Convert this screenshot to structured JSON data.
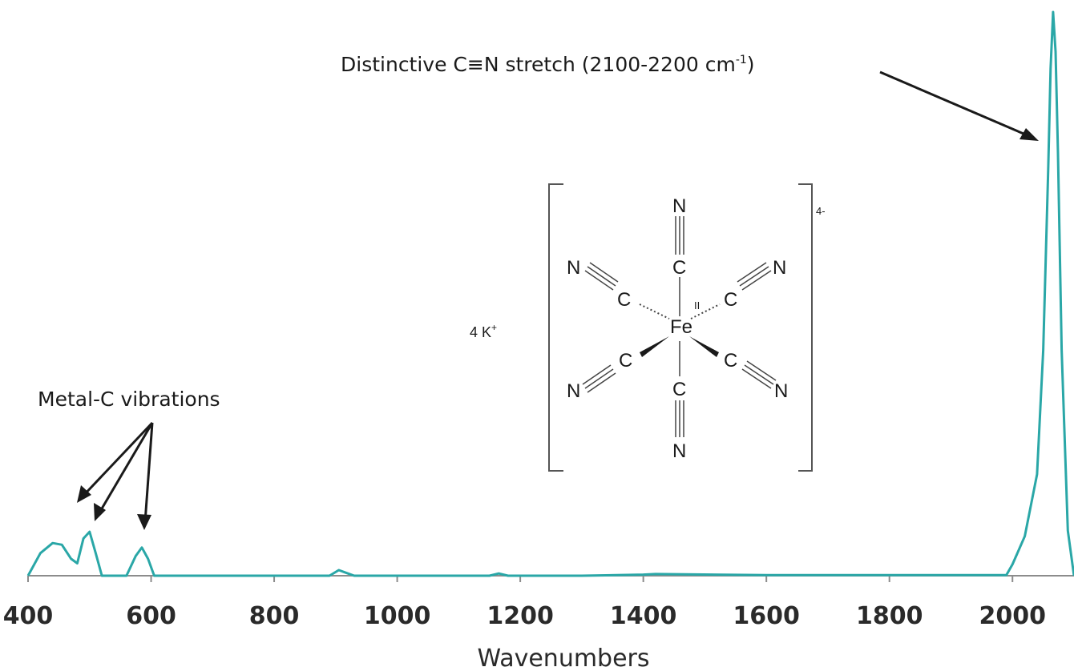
{
  "chart_data": {
    "type": "line",
    "xlabel": "Wavenumbers",
    "ylabel": "",
    "title": "",
    "xlim": [
      400,
      2100
    ],
    "ylim": [
      0,
      1
    ],
    "xticks": [
      400,
      600,
      800,
      1000,
      1200,
      1400,
      1600,
      1800,
      2000
    ],
    "xtick_labels": [
      "400",
      "600",
      "800",
      "1000",
      "1200",
      "1400",
      "1600",
      "1800",
      "2000"
    ],
    "series": [
      {
        "color": "#2aa7a7",
        "x": [
          400,
          420,
          440,
          455,
          470,
          480,
          490,
          500,
          510,
          520,
          540,
          560,
          575,
          585,
          595,
          605,
          620,
          700,
          800,
          890,
          905,
          915,
          930,
          1000,
          1150,
          1165,
          1180,
          1300,
          1400,
          1420,
          1600,
          1800,
          1990,
          2000,
          2020,
          2040,
          2050,
          2058,
          2062,
          2066,
          2070,
          2074,
          2080,
          2090,
          2100
        ],
        "y": [
          0.0,
          0.04,
          0.058,
          0.055,
          0.03,
          0.022,
          0.066,
          0.078,
          0.04,
          0.0,
          0.0,
          0.0,
          0.035,
          0.05,
          0.03,
          0.0,
          0.0,
          0.0,
          0.0,
          0.0,
          0.01,
          0.006,
          0.0,
          0.0,
          0.0,
          0.004,
          0.0,
          0.0,
          0.002,
          0.003,
          0.001,
          0.001,
          0.001,
          0.02,
          0.07,
          0.18,
          0.4,
          0.72,
          0.9,
          1.0,
          0.93,
          0.75,
          0.4,
          0.08,
          0.0
        ]
      }
    ],
    "annotations": [
      {
        "text": "Distinctive C≡N stretch (2100-2200 cm",
        "superscript": "-1",
        "close": ")",
        "points_to_x": [
          2065
        ]
      },
      {
        "text": "Metal-C vibrations",
        "points_to_x": [
          480,
          500,
          590
        ]
      }
    ]
  },
  "structure": {
    "charge": "4-",
    "counter_ion": "4 K",
    "counter_ion_sup": "+",
    "metal": "Fe",
    "metal_ox": "II",
    "carbon": "C",
    "nitrogen": "N"
  }
}
